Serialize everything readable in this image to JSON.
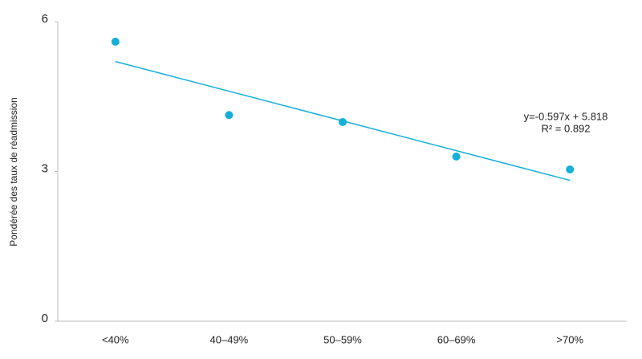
{
  "chart_data": {
    "type": "scatter",
    "y_label": "Pondérée des taux de réadmission",
    "categories": [
      "<40%",
      "40–49%",
      "50–59%",
      "60–69%",
      ">70%"
    ],
    "values": [
      5.6,
      4.13,
      3.99,
      3.3,
      3.04
    ],
    "color": "#14b0d8",
    "trendline": true,
    "annotation": [
      "y=-0.597x + 5.818",
      "R² = 0.892"
    ],
    "ylim": [
      0,
      6
    ],
    "yticks": [
      0,
      3,
      6
    ],
    "grid": false
  }
}
